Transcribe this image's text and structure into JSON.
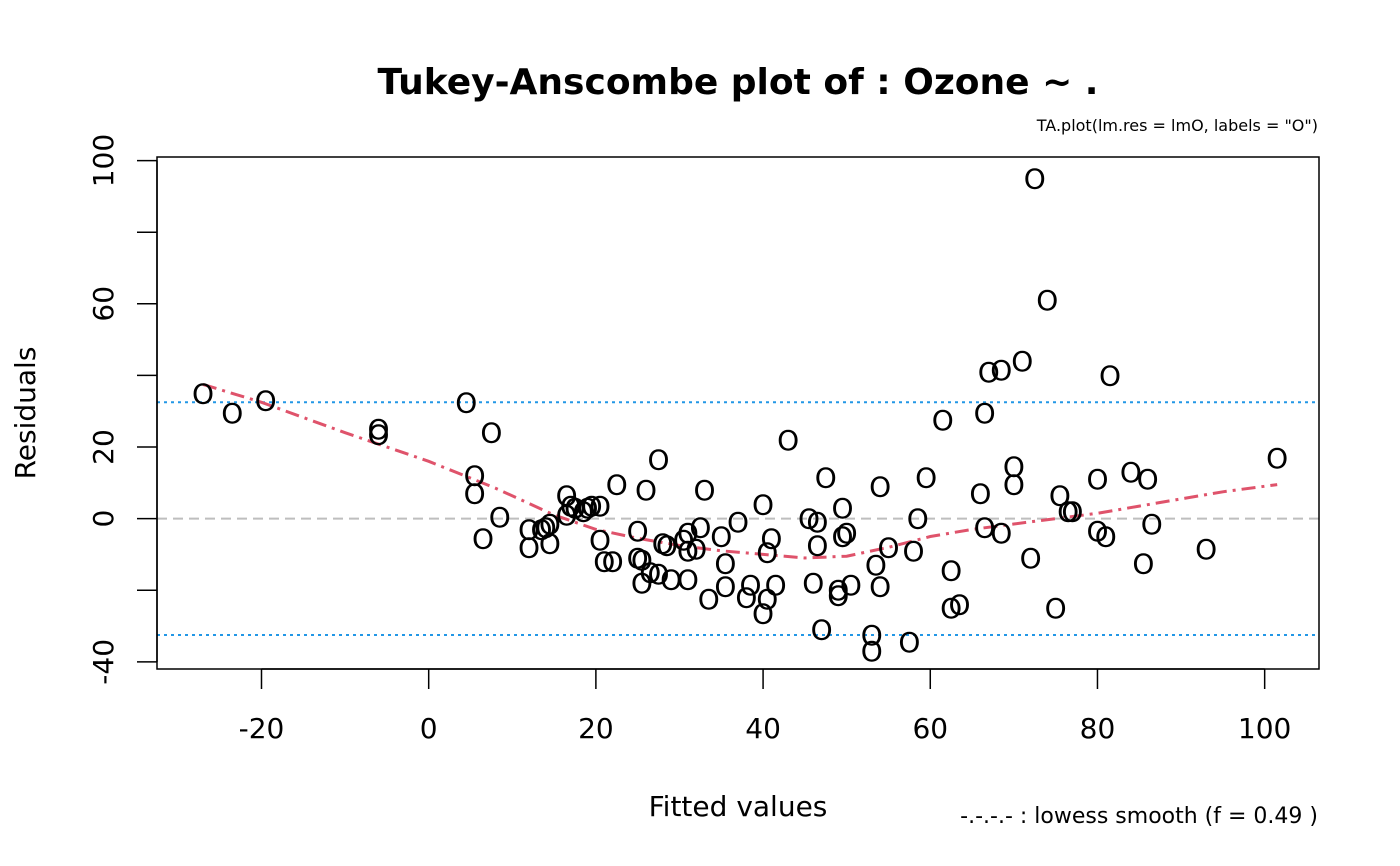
{
  "chart_data": {
    "type": "scatter",
    "title": "Tukey-Anscombe plot of :   Ozone ~ .",
    "subtitle": "TA.plot(lm.res = lmO, labels = \"O\")",
    "xlabel": "Fitted values",
    "ylabel": "Residuals",
    "smooth_note": "-.-.-.- : lowess smooth (f = 0.49  )",
    "point_label": "O",
    "xlim": [
      -32.5,
      106.5
    ],
    "ylim": [
      -42,
      101
    ],
    "x_ticks": [
      -20,
      0,
      20,
      40,
      60,
      80,
      100
    ],
    "y_ticks": [
      -40,
      -20,
      0,
      20,
      40,
      60,
      80,
      100
    ],
    "y_tick_labels": [
      "-40",
      "",
      "0",
      "20",
      "",
      "60",
      "",
      "100"
    ],
    "hlines": [
      {
        "y": 0,
        "style": "dashed",
        "color": "#bebebe"
      },
      {
        "y": 32.5,
        "style": "dotted",
        "color": "#2297e6"
      },
      {
        "y": -32.5,
        "style": "dotted",
        "color": "#2297e6"
      }
    ],
    "colors": {
      "points": "#000000",
      "smooth": "#df536b"
    },
    "points": [
      [
        -27,
        35
      ],
      [
        -23.5,
        29.5
      ],
      [
        -19.5,
        33
      ],
      [
        -6,
        25
      ],
      [
        -6,
        23.5
      ],
      [
        4.5,
        32.5
      ],
      [
        5.5,
        12
      ],
      [
        5.5,
        7
      ],
      [
        6.5,
        -5.5
      ],
      [
        7.5,
        24
      ],
      [
        8.5,
        0.5
      ],
      [
        12,
        -3
      ],
      [
        12,
        -8
      ],
      [
        13.5,
        -3
      ],
      [
        14,
        -2.5
      ],
      [
        14.5,
        -1.5
      ],
      [
        14.5,
        -7
      ],
      [
        16.5,
        6.5
      ],
      [
        16.5,
        1
      ],
      [
        17,
        3.5
      ],
      [
        17.5,
        3
      ],
      [
        18.5,
        2
      ],
      [
        19,
        3
      ],
      [
        19.5,
        3.5
      ],
      [
        20.5,
        3.5
      ],
      [
        20.5,
        -6
      ],
      [
        21,
        -12
      ],
      [
        22,
        -12
      ],
      [
        22.5,
        9.5
      ],
      [
        25,
        -3.5
      ],
      [
        25,
        -11
      ],
      [
        25.5,
        -11.5
      ],
      [
        25.5,
        -18
      ],
      [
        26,
        8
      ],
      [
        26.5,
        -15
      ],
      [
        27.5,
        16.5
      ],
      [
        27.5,
        -15.5
      ],
      [
        28,
        -7
      ],
      [
        28.5,
        -7.5
      ],
      [
        29,
        -17
      ],
      [
        30.5,
        -6
      ],
      [
        31,
        -4
      ],
      [
        31,
        -17
      ],
      [
        31,
        -9
      ],
      [
        32,
        -8.5
      ],
      [
        32.5,
        -2.5
      ],
      [
        33,
        8
      ],
      [
        33.5,
        -22.5
      ],
      [
        35,
        -5
      ],
      [
        35.5,
        -12.5
      ],
      [
        35.5,
        -19
      ],
      [
        37,
        -1
      ],
      [
        38,
        -22
      ],
      [
        38.5,
        -18.5
      ],
      [
        40,
        -26.5
      ],
      [
        40,
        4
      ],
      [
        40.5,
        -22.5
      ],
      [
        40.5,
        -9.5
      ],
      [
        41,
        -5.5
      ],
      [
        41.5,
        -18.5
      ],
      [
        43,
        22
      ],
      [
        45.5,
        0
      ],
      [
        46,
        -18
      ],
      [
        46.5,
        -1
      ],
      [
        46.5,
        -7.5
      ],
      [
        47,
        -31
      ],
      [
        47.5,
        11.5
      ],
      [
        49,
        -20
      ],
      [
        49,
        -21.5
      ],
      [
        49.5,
        3
      ],
      [
        49.5,
        -5
      ],
      [
        50,
        -4
      ],
      [
        50.5,
        -18.5
      ],
      [
        53,
        -32.5
      ],
      [
        53,
        -37
      ],
      [
        53.5,
        -13
      ],
      [
        54,
        9
      ],
      [
        54,
        -19
      ],
      [
        55,
        -8
      ],
      [
        57.5,
        -34.5
      ],
      [
        58,
        -9
      ],
      [
        58.5,
        0
      ],
      [
        59.5,
        11.5
      ],
      [
        61.5,
        27.5
      ],
      [
        62.5,
        -25
      ],
      [
        62.5,
        -14.5
      ],
      [
        63.5,
        -24
      ],
      [
        66,
        7
      ],
      [
        66.5,
        29.5
      ],
      [
        66.5,
        -2.5
      ],
      [
        67,
        41
      ],
      [
        68.5,
        -4
      ],
      [
        68.5,
        41.5
      ],
      [
        70,
        14.5
      ],
      [
        70,
        9.5
      ],
      [
        71,
        44
      ],
      [
        72,
        -11
      ],
      [
        72.5,
        95
      ],
      [
        74,
        61
      ],
      [
        75,
        -25
      ],
      [
        75.5,
        6.5
      ],
      [
        76.5,
        2
      ],
      [
        77,
        2
      ],
      [
        80,
        11
      ],
      [
        80,
        -3.5
      ],
      [
        81,
        -5
      ],
      [
        81.5,
        40
      ],
      [
        84,
        13
      ],
      [
        85.5,
        -12.5
      ],
      [
        86,
        11
      ],
      [
        86.5,
        -1.5
      ],
      [
        93,
        -8.5
      ],
      [
        101.5,
        17
      ]
    ],
    "lowess": [
      [
        -27,
        37.5
      ],
      [
        -20,
        32.5
      ],
      [
        -10,
        24
      ],
      [
        0,
        16
      ],
      [
        8,
        8.5
      ],
      [
        15,
        1
      ],
      [
        20,
        -3
      ],
      [
        25,
        -5.5
      ],
      [
        30,
        -7.5
      ],
      [
        35,
        -9
      ],
      [
        40,
        -10
      ],
      [
        45,
        -11
      ],
      [
        50,
        -10.5
      ],
      [
        55,
        -8
      ],
      [
        60,
        -5
      ],
      [
        65,
        -3
      ],
      [
        70,
        -1.5
      ],
      [
        75,
        0
      ],
      [
        80,
        1.5
      ],
      [
        85,
        3.5
      ],
      [
        90,
        5.5
      ],
      [
        95,
        7.5
      ],
      [
        101.5,
        9.5
      ]
    ]
  }
}
